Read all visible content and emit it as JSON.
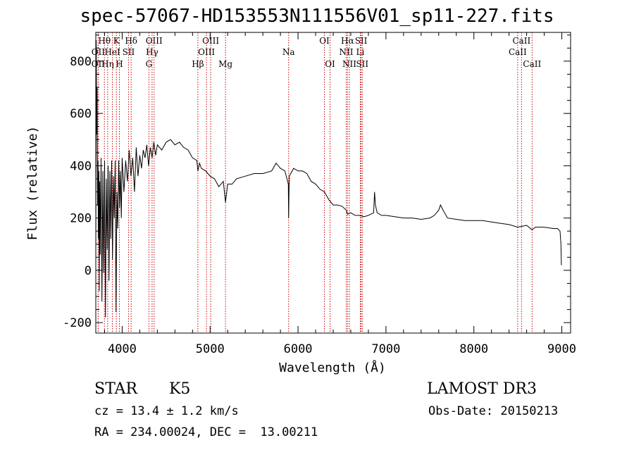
{
  "chart_data": {
    "type": "line",
    "title": "spec-57067-HD153553N111556V01_sp11-227.fits",
    "xlabel": "Wavelength (Å)",
    "ylabel": "Flux (relative)",
    "xlim": [
      3700,
      9100
    ],
    "ylim": [
      -240,
      910
    ],
    "x_ticks": [
      4000,
      5000,
      6000,
      7000,
      8000,
      9000
    ],
    "y_ticks": [
      -200,
      0,
      200,
      400,
      600,
      800
    ],
    "grid": false,
    "series": [
      {
        "x": [
          3700,
          3705,
          3710,
          3715,
          3720,
          3725,
          3730,
          3735,
          3740,
          3745,
          3750,
          3760,
          3770,
          3780,
          3790,
          3800,
          3810,
          3820,
          3830,
          3840,
          3850,
          3860,
          3870,
          3880,
          3890,
          3900,
          3910,
          3920,
          3930,
          3940,
          3950,
          3960,
          3970,
          3980,
          3990,
          4000,
          4020,
          4040,
          4060,
          4080,
          4100,
          4120,
          4140,
          4160,
          4180,
          4200,
          4220,
          4240,
          4260,
          4280,
          4300,
          4320,
          4340,
          4360,
          4380,
          4400,
          4450,
          4500,
          4550,
          4600,
          4650,
          4700,
          4750,
          4800,
          4850,
          4861,
          4880,
          4900,
          4950,
          5000,
          5050,
          5100,
          5150,
          5175,
          5200,
          5250,
          5300,
          5400,
          5500,
          5600,
          5700,
          5750,
          5800,
          5850,
          5890,
          5893,
          5900,
          5950,
          6000,
          6050,
          6100,
          6150,
          6200,
          6250,
          6300,
          6350,
          6400,
          6450,
          6500,
          6550,
          6563,
          6600,
          6650,
          6700,
          6750,
          6800,
          6860,
          6870,
          6880,
          6900,
          6950,
          7000,
          7100,
          7200,
          7300,
          7400,
          7500,
          7550,
          7600,
          7620,
          7650,
          7700,
          7800,
          7900,
          8000,
          8100,
          8200,
          8300,
          8400,
          8498,
          8542,
          8600,
          8662,
          8700,
          8800,
          8900,
          8950,
          8980,
          8990,
          8995
        ],
        "y": [
          10,
          880,
          520,
          700,
          250,
          420,
          120,
          380,
          -80,
          340,
          60,
          430,
          -120,
          380,
          -10,
          420,
          -180,
          350,
          80,
          400,
          -40,
          380,
          120,
          420,
          40,
          360,
          200,
          420,
          -160,
          300,
          160,
          420,
          240,
          380,
          200,
          430,
          300,
          420,
          340,
          460,
          360,
          430,
          300,
          470,
          360,
          440,
          390,
          460,
          430,
          480,
          400,
          470,
          430,
          490,
          440,
          480,
          460,
          490,
          500,
          480,
          490,
          470,
          460,
          430,
          420,
          380,
          410,
          390,
          380,
          360,
          350,
          320,
          340,
          260,
          330,
          330,
          350,
          360,
          370,
          370,
          380,
          410,
          390,
          380,
          330,
          200,
          360,
          390,
          380,
          380,
          370,
          340,
          330,
          310,
          300,
          270,
          250,
          250,
          245,
          230,
          215,
          220,
          210,
          210,
          205,
          210,
          220,
          300,
          250,
          220,
          210,
          210,
          205,
          200,
          200,
          195,
          200,
          210,
          230,
          250,
          230,
          200,
          195,
          190,
          190,
          190,
          185,
          180,
          175,
          165,
          168,
          172,
          155,
          165,
          165,
          160,
          160,
          150,
          100,
          20
        ]
      }
    ],
    "spectral_lines": [
      {
        "label": "Hθ",
        "x": 3798,
        "row": 1
      },
      {
        "label": "OII",
        "x": 3727,
        "row": 2
      },
      {
        "label": "OII",
        "x": 3727,
        "row": 3
      },
      {
        "label": "Hη",
        "x": 3835,
        "row": 3
      },
      {
        "label": "HeI",
        "x": 3889,
        "row": 2
      },
      {
        "label": "K",
        "x": 3934,
        "row": 1
      },
      {
        "label": "H",
        "x": 3968,
        "row": 3
      },
      {
        "label": "SII",
        "x": 4072,
        "row": 2
      },
      {
        "label": "Hδ",
        "x": 4102,
        "row": 1
      },
      {
        "label": "OIII",
        "x": 4363,
        "row": 1
      },
      {
        "label": "Hγ",
        "x": 4340,
        "row": 2
      },
      {
        "label": "G",
        "x": 4304,
        "row": 3
      },
      {
        "label": "Hβ",
        "x": 4861,
        "row": 3
      },
      {
        "label": "OIII",
        "x": 5007,
        "row": 1
      },
      {
        "label": "OIII",
        "x": 4959,
        "row": 2
      },
      {
        "label": "Mg",
        "x": 5175,
        "row": 3
      },
      {
        "label": "Na",
        "x": 5893,
        "row": 2
      },
      {
        "label": "OI",
        "x": 6300,
        "row": 1
      },
      {
        "label": "OI",
        "x": 6364,
        "row": 3
      },
      {
        "label": "Hα",
        "x": 6563,
        "row": 1
      },
      {
        "label": "NII",
        "x": 6548,
        "row": 2
      },
      {
        "label": "NII",
        "x": 6584,
        "row": 3
      },
      {
        "label": "SII",
        "x": 6717,
        "row": 1
      },
      {
        "label": "Li",
        "x": 6708,
        "row": 2
      },
      {
        "label": "SII",
        "x": 6731,
        "row": 3
      },
      {
        "label": "CaII",
        "x": 8542,
        "row": 1
      },
      {
        "label": "CaII",
        "x": 8498,
        "row": 2
      },
      {
        "label": "CaII",
        "x": 8662,
        "row": 3
      }
    ]
  },
  "info": {
    "object_class": "STAR",
    "subclass": "K5",
    "survey": "LAMOST DR3",
    "redshift": "cz = 13.4 ± 1.2 km/s",
    "obs_date": "Obs-Date: 20150213",
    "coords": "RA = 234.00024, DEC =  13.00211"
  },
  "colors": {
    "spectrum": "#000000",
    "line_markers": "#cc0000"
  }
}
